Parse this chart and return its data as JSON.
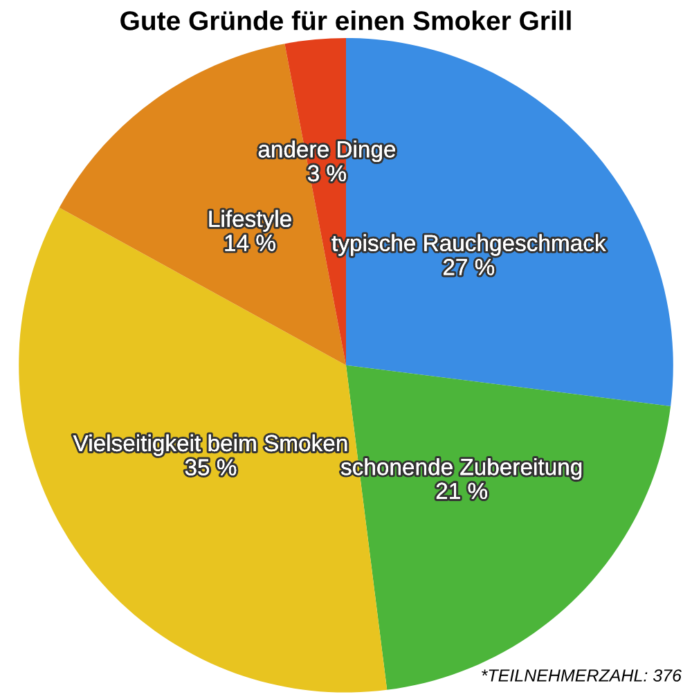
{
  "chart_data": {
    "type": "pie",
    "title": "Gute Gründe für einen Smoker Grill",
    "categories": [
      "typische Rauchgeschmack",
      "schonende Zubereitung",
      "Vielseitigkeit beim Smoken",
      "Lifestyle",
      "andere Dinge"
    ],
    "values": [
      27,
      21,
      35,
      14,
      3
    ],
    "value_labels": [
      "27 %",
      "21 %",
      "35 %",
      "14 %",
      "3 %"
    ],
    "colors": [
      "#3a8de4",
      "#4cb53a",
      "#e8c420",
      "#e0871c",
      "#e4401a"
    ],
    "annotations": [
      "*TEILNEHMERZAHL: 376"
    ]
  }
}
